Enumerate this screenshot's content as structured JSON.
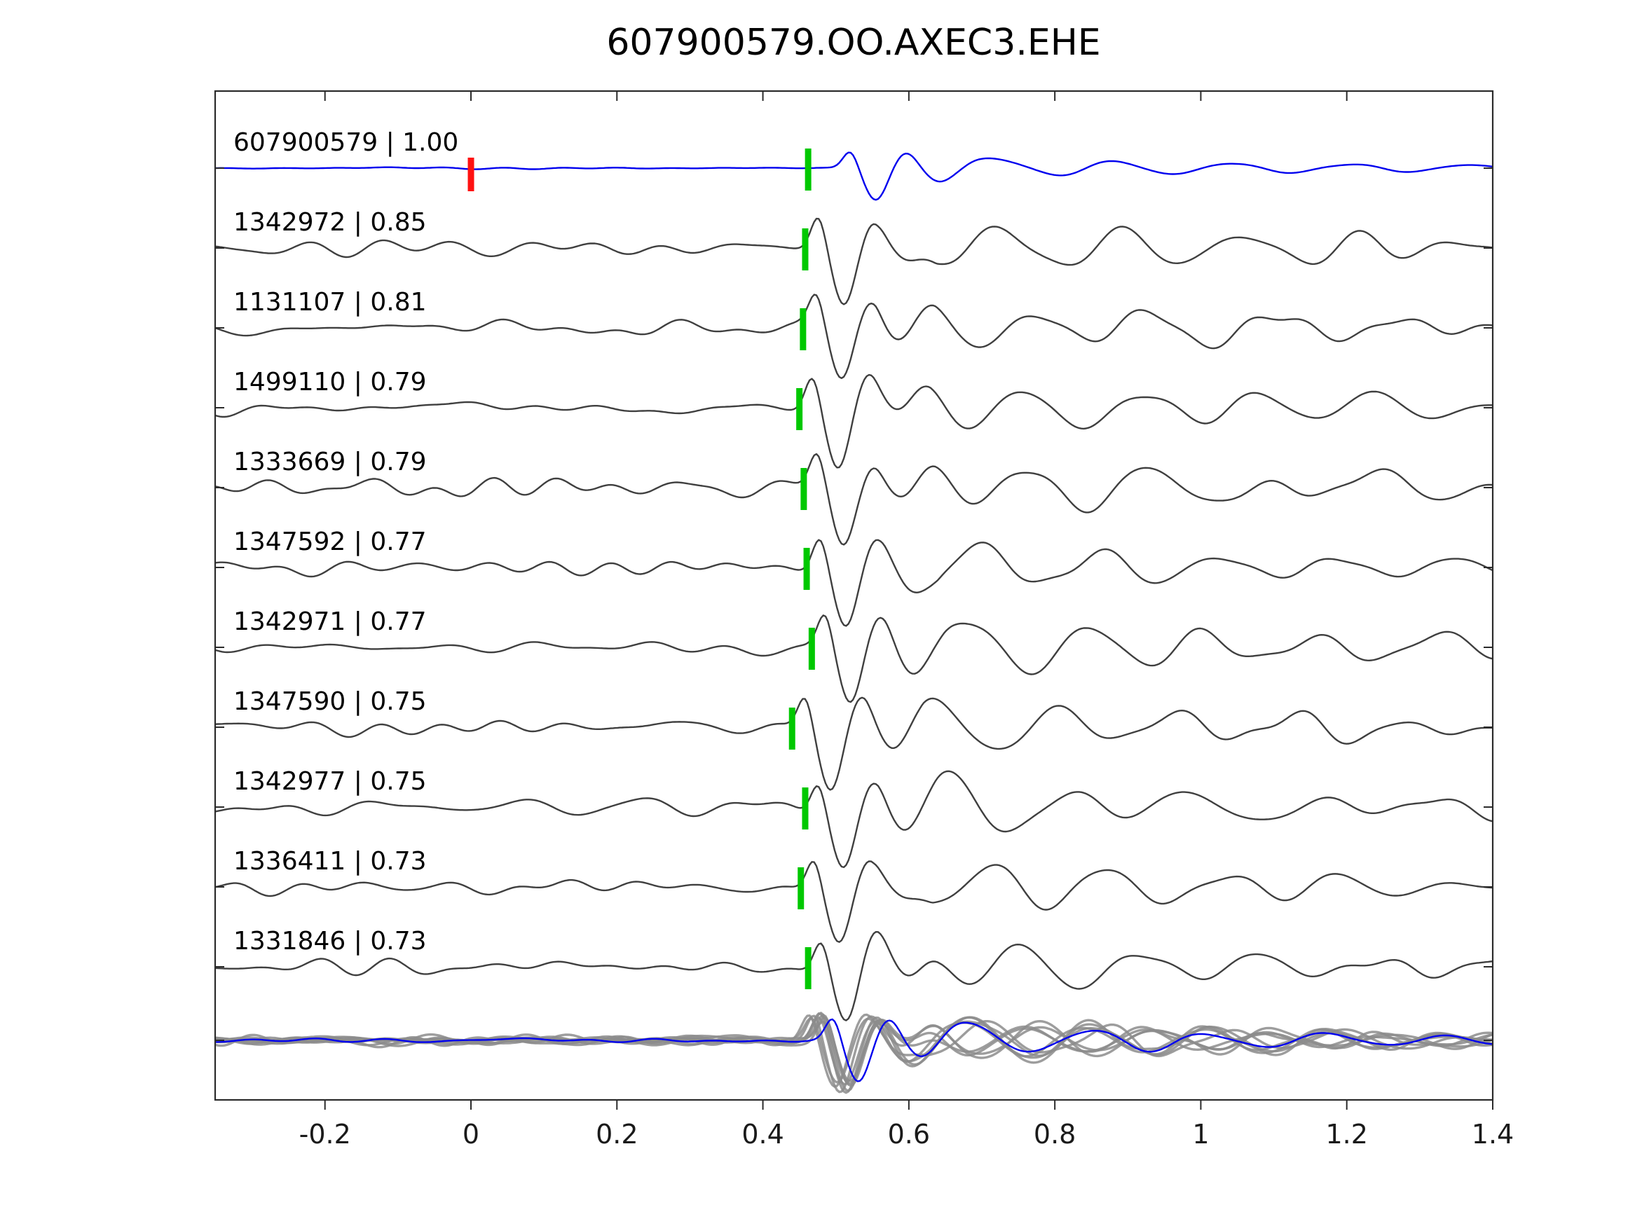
{
  "title": "607900579.OO.AXEC3.EHE",
  "colors": {
    "template_trace": "#0000ee",
    "match_trace": "#3f3f3f",
    "stack_trace": "#8c8c8c",
    "pick_marker": "#00c800",
    "zero_marker": "#ff1111",
    "axis": "#2b2b2b",
    "tick_label": "#1a1a1a",
    "trace_label": "#000000",
    "background": "#ffffff"
  },
  "chart_data": {
    "type": "line",
    "title": "607900579.OO.AXEC3.EHE",
    "xlabel": "",
    "ylabel": "",
    "xlim": [
      -0.35,
      1.4
    ],
    "xticks": [
      -0.2,
      0,
      0.2,
      0.4,
      0.6,
      0.8,
      1,
      1.2,
      1.4
    ],
    "xtick_labels": [
      "-0.2",
      "0",
      "0.2",
      "0.4",
      "0.6",
      "0.8",
      "1",
      "1.2",
      "1.4"
    ],
    "grid": false,
    "legend": null,
    "traces": [
      {
        "event_id": "607900579",
        "cc": 1.0,
        "label": "607900579 | 1.00",
        "kind": "template",
        "pick": 0.462,
        "zero_marker": 0.0,
        "seed": 3,
        "noise_amp": 1.6,
        "main_amp": 46,
        "coda_amp": 15,
        "delay": 0.04
      },
      {
        "event_id": "1342972",
        "cc": 0.85,
        "label": "1342972 | 0.85",
        "kind": "match",
        "pick": 0.458,
        "seed": 17,
        "noise_amp": 13,
        "main_amp": 84,
        "coda_amp": 40,
        "delay": 0
      },
      {
        "event_id": "1131107",
        "cc": 0.81,
        "label": "1131107 | 0.81",
        "kind": "match",
        "pick": 0.455,
        "seed": 29,
        "noise_amp": 12,
        "main_amp": 80,
        "coda_amp": 38,
        "delay": 0
      },
      {
        "event_id": "1499110",
        "cc": 0.79,
        "label": "1499110 | 0.79",
        "kind": "match",
        "pick": 0.45,
        "seed": 41,
        "noise_amp": 13,
        "main_amp": 86,
        "coda_amp": 42,
        "delay": 0
      },
      {
        "event_id": "1333669",
        "cc": 0.79,
        "label": "1333669 | 0.79",
        "kind": "match",
        "pick": 0.456,
        "seed": 53,
        "noise_amp": 14,
        "main_amp": 82,
        "coda_amp": 39,
        "delay": 0
      },
      {
        "event_id": "1347592",
        "cc": 0.77,
        "label": "1347592 | 0.77",
        "kind": "match",
        "pick": 0.46,
        "seed": 67,
        "noise_amp": 13,
        "main_amp": 83,
        "coda_amp": 41,
        "delay": 0
      },
      {
        "event_id": "1342971",
        "cc": 0.77,
        "label": "1342971 | 0.77",
        "kind": "match",
        "pick": 0.467,
        "seed": 71,
        "noise_amp": 12,
        "main_amp": 85,
        "coda_amp": 40,
        "delay": 0
      },
      {
        "event_id": "1347590",
        "cc": 0.75,
        "label": "1347590 | 0.75",
        "kind": "match",
        "pick": 0.44,
        "seed": 83,
        "noise_amp": 14,
        "main_amp": 86,
        "coda_amp": 40,
        "delay": 0
      },
      {
        "event_id": "1342977",
        "cc": 0.75,
        "label": "1342977 | 0.75",
        "kind": "match",
        "pick": 0.458,
        "seed": 97,
        "noise_amp": 13,
        "main_amp": 84,
        "coda_amp": 38,
        "delay": 0
      },
      {
        "event_id": "1336411",
        "cc": 0.73,
        "label": "1336411 | 0.73",
        "kind": "match",
        "pick": 0.452,
        "seed": 101,
        "noise_amp": 13,
        "main_amp": 82,
        "coda_amp": 42,
        "delay": 0
      },
      {
        "event_id": "1331846",
        "cc": 0.73,
        "label": "1331846 | 0.73",
        "kind": "match",
        "pick": 0.462,
        "seed": 113,
        "noise_amp": 12,
        "main_amp": 81,
        "coda_amp": 37,
        "delay": 0
      }
    ],
    "stack": {
      "kind": "aligned-overlay",
      "n_members": 9,
      "pick": 0.458,
      "member_seeds": [
        7,
        19,
        31,
        43,
        59,
        73,
        89,
        103,
        127
      ],
      "noise_amp": 7,
      "main_amp": 66,
      "coda_amp": 30,
      "template_overlay": {
        "seed": 131,
        "noise_amp": 3,
        "main_amp": 58,
        "coda_amp": 22,
        "delay": 0.02
      }
    }
  }
}
